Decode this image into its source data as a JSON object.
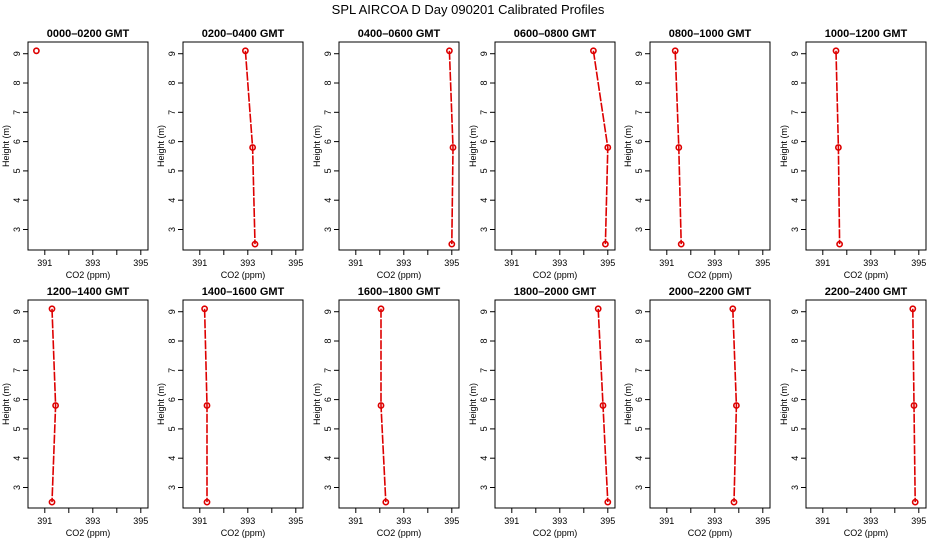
{
  "figure": {
    "title": "SPL AIRCOA D  Day 090201  Calibrated Profiles"
  },
  "chart_data": [
    {
      "type": "line",
      "title": "0000–0200 GMT",
      "xlabel": "CO2 (ppm)",
      "ylabel": "Height (m)",
      "xlim": [
        390.3,
        395.3
      ],
      "ylim": [
        2.3,
        9.4
      ],
      "xticks": [
        391,
        393,
        395
      ],
      "xtick_labels": [
        "391",
        "",
        "393",
        "",
        "395"
      ],
      "xticks_all": [
        391,
        392,
        393,
        394,
        395
      ],
      "yticks": [
        3,
        4,
        5,
        6,
        7,
        8,
        9
      ],
      "points": [
        {
          "co2": 390.65,
          "height": 9.1
        }
      ]
    },
    {
      "type": "line",
      "title": "0200–0400 GMT",
      "xlabel": "CO2 (ppm)",
      "ylabel": "Height (m)",
      "xlim": [
        390.3,
        395.3
      ],
      "ylim": [
        2.3,
        9.4
      ],
      "xticks_all": [
        391,
        392,
        393,
        394,
        395
      ],
      "xtick_labels": [
        "391",
        "",
        "393",
        "",
        "395"
      ],
      "yticks": [
        3,
        4,
        5,
        6,
        7,
        8,
        9
      ],
      "points": [
        {
          "co2": 392.9,
          "height": 9.1
        },
        {
          "co2": 393.2,
          "height": 5.8
        },
        {
          "co2": 393.3,
          "height": 2.5
        }
      ]
    },
    {
      "type": "line",
      "title": "0400–0600 GMT",
      "xlabel": "CO2 (ppm)",
      "ylabel": "Height (m)",
      "xlim": [
        390.3,
        395.3
      ],
      "ylim": [
        2.3,
        9.4
      ],
      "xticks_all": [
        391,
        392,
        393,
        394,
        395
      ],
      "xtick_labels": [
        "391",
        "",
        "393",
        "",
        "395"
      ],
      "yticks": [
        3,
        4,
        5,
        6,
        7,
        8,
        9
      ],
      "points": [
        {
          "co2": 394.9,
          "height": 9.1
        },
        {
          "co2": 395.05,
          "height": 5.8
        },
        {
          "co2": 395.0,
          "height": 2.5
        }
      ]
    },
    {
      "type": "line",
      "title": "0600–0800 GMT",
      "xlabel": "CO2 (ppm)",
      "ylabel": "Height (m)",
      "xlim": [
        390.3,
        395.3
      ],
      "ylim": [
        2.3,
        9.4
      ],
      "xticks_all": [
        391,
        392,
        393,
        394,
        395
      ],
      "xtick_labels": [
        "391",
        "",
        "393",
        "",
        "395"
      ],
      "yticks": [
        3,
        4,
        5,
        6,
        7,
        8,
        9
      ],
      "points": [
        {
          "co2": 394.4,
          "height": 9.1
        },
        {
          "co2": 395.0,
          "height": 5.8
        },
        {
          "co2": 394.9,
          "height": 2.5
        }
      ]
    },
    {
      "type": "line",
      "title": "0800–1000 GMT",
      "xlabel": "CO2 (ppm)",
      "ylabel": "Height (m)",
      "xlim": [
        390.3,
        395.3
      ],
      "ylim": [
        2.3,
        9.4
      ],
      "xticks_all": [
        391,
        392,
        393,
        394,
        395
      ],
      "xtick_labels": [
        "391",
        "",
        "393",
        "",
        "395"
      ],
      "yticks": [
        3,
        4,
        5,
        6,
        7,
        8,
        9
      ],
      "points": [
        {
          "co2": 391.35,
          "height": 9.1
        },
        {
          "co2": 391.5,
          "height": 5.8
        },
        {
          "co2": 391.6,
          "height": 2.5
        }
      ]
    },
    {
      "type": "line",
      "title": "1000–1200 GMT",
      "xlabel": "CO2 (ppm)",
      "ylabel": "Height (m)",
      "xlim": [
        390.3,
        395.3
      ],
      "ylim": [
        2.3,
        9.4
      ],
      "xticks_all": [
        391,
        392,
        393,
        394,
        395
      ],
      "xtick_labels": [
        "391",
        "",
        "393",
        "",
        "395"
      ],
      "yticks": [
        3,
        4,
        5,
        6,
        7,
        8,
        9
      ],
      "points": [
        {
          "co2": 391.55,
          "height": 9.1
        },
        {
          "co2": 391.65,
          "height": 5.8
        },
        {
          "co2": 391.7,
          "height": 2.5
        }
      ]
    },
    {
      "type": "line",
      "title": "1200–1400 GMT",
      "xlabel": "CO2 (ppm)",
      "ylabel": "Height (m)",
      "xlim": [
        390.3,
        395.3
      ],
      "ylim": [
        2.3,
        9.4
      ],
      "xticks_all": [
        391,
        392,
        393,
        394,
        395
      ],
      "xtick_labels": [
        "391",
        "",
        "393",
        "",
        "395"
      ],
      "yticks": [
        3,
        4,
        5,
        6,
        7,
        8,
        9
      ],
      "points": [
        {
          "co2": 391.3,
          "height": 9.1
        },
        {
          "co2": 391.45,
          "height": 5.8
        },
        {
          "co2": 391.3,
          "height": 2.5
        }
      ]
    },
    {
      "type": "line",
      "title": "1400–1600 GMT",
      "xlabel": "CO2 (ppm)",
      "ylabel": "Height (m)",
      "xlim": [
        390.3,
        395.3
      ],
      "ylim": [
        2.3,
        9.4
      ],
      "xticks_all": [
        391,
        392,
        393,
        394,
        395
      ],
      "xtick_labels": [
        "391",
        "",
        "393",
        "",
        "395"
      ],
      "yticks": [
        3,
        4,
        5,
        6,
        7,
        8,
        9
      ],
      "points": [
        {
          "co2": 391.2,
          "height": 9.1
        },
        {
          "co2": 391.3,
          "height": 5.8
        },
        {
          "co2": 391.3,
          "height": 2.5
        }
      ]
    },
    {
      "type": "line",
      "title": "1600–1800 GMT",
      "xlabel": "CO2 (ppm)",
      "ylabel": "Height (m)",
      "xlim": [
        390.3,
        395.3
      ],
      "ylim": [
        2.3,
        9.4
      ],
      "xticks_all": [
        391,
        392,
        393,
        394,
        395
      ],
      "xtick_labels": [
        "391",
        "",
        "393",
        "",
        "395"
      ],
      "yticks": [
        3,
        4,
        5,
        6,
        7,
        8,
        9
      ],
      "points": [
        {
          "co2": 392.05,
          "height": 9.1
        },
        {
          "co2": 392.05,
          "height": 5.8
        },
        {
          "co2": 392.25,
          "height": 2.5
        }
      ]
    },
    {
      "type": "line",
      "title": "1800–2000 GMT",
      "xlabel": "CO2 (ppm)",
      "ylabel": "Height (m)",
      "xlim": [
        390.3,
        395.3
      ],
      "ylim": [
        2.3,
        9.4
      ],
      "xticks_all": [
        391,
        392,
        393,
        394,
        395
      ],
      "xtick_labels": [
        "391",
        "",
        "393",
        "",
        "395"
      ],
      "yticks": [
        3,
        4,
        5,
        6,
        7,
        8,
        9
      ],
      "points": [
        {
          "co2": 394.6,
          "height": 9.1
        },
        {
          "co2": 394.8,
          "height": 5.8
        },
        {
          "co2": 395.0,
          "height": 2.5
        }
      ]
    },
    {
      "type": "line",
      "title": "2000–2200 GMT",
      "xlabel": "CO2 (ppm)",
      "ylabel": "Height (m)",
      "xlim": [
        390.3,
        395.3
      ],
      "ylim": [
        2.3,
        9.4
      ],
      "xticks_all": [
        391,
        392,
        393,
        394,
        395
      ],
      "xtick_labels": [
        "391",
        "",
        "393",
        "",
        "395"
      ],
      "yticks": [
        3,
        4,
        5,
        6,
        7,
        8,
        9
      ],
      "points": [
        {
          "co2": 393.75,
          "height": 9.1
        },
        {
          "co2": 393.9,
          "height": 5.8
        },
        {
          "co2": 393.8,
          "height": 2.5
        }
      ]
    },
    {
      "type": "line",
      "title": "2200–2400 GMT",
      "xlabel": "CO2 (ppm)",
      "ylabel": "Height (m)",
      "xlim": [
        390.3,
        395.3
      ],
      "ylim": [
        2.3,
        9.4
      ],
      "xticks_all": [
        391,
        392,
        393,
        394,
        395
      ],
      "xtick_labels": [
        "391",
        "",
        "393",
        "",
        "395"
      ],
      "yticks": [
        3,
        4,
        5,
        6,
        7,
        8,
        9
      ],
      "points": [
        {
          "co2": 394.75,
          "height": 9.1
        },
        {
          "co2": 394.8,
          "height": 5.8
        },
        {
          "co2": 394.85,
          "height": 2.5
        }
      ]
    }
  ],
  "colors": {
    "series": "#dd0000",
    "axes": "#000000",
    "background": "#ffffff"
  }
}
